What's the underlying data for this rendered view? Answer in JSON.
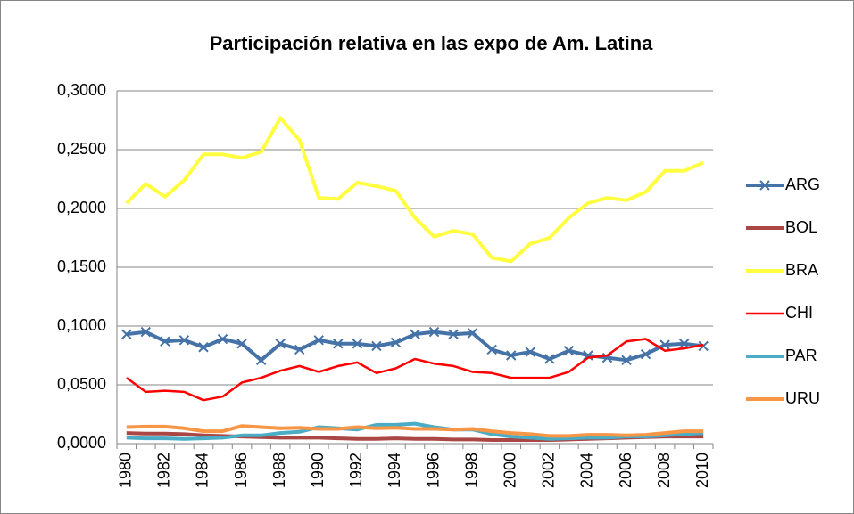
{
  "chart_data": {
    "type": "line",
    "title": "Participación relativa en las expo de Am. Latina",
    "categories": [
      "1980",
      null,
      "1982",
      null,
      "1984",
      null,
      "1986",
      null,
      "1988",
      null,
      "1990",
      null,
      "1992",
      null,
      "1994",
      null,
      "1996",
      null,
      "1998",
      null,
      "2000",
      null,
      "2002",
      null,
      "2004",
      null,
      "2006",
      null,
      "2008",
      null,
      "2010"
    ],
    "ylim": [
      0,
      0.3
    ],
    "yticks": [
      {
        "value": 0,
        "label": "0,0000"
      },
      {
        "value": 0.05,
        "label": "0,0500"
      },
      {
        "value": 0.1,
        "label": "0,1000"
      },
      {
        "value": 0.15,
        "label": "0,1500"
      },
      {
        "value": 0.2,
        "label": "0,2000"
      },
      {
        "value": 0.25,
        "label": "0,2500"
      },
      {
        "value": 0.3,
        "label": "0,3000"
      }
    ],
    "grid": true,
    "legend": "right",
    "series": [
      {
        "name": "ARG",
        "color": "#4572a7",
        "marker": "x",
        "values": [
          0.093,
          0.095,
          0.087,
          0.088,
          0.082,
          0.089,
          0.085,
          0.071,
          0.085,
          0.08,
          0.088,
          0.085,
          0.085,
          0.083,
          0.086,
          0.093,
          0.095,
          0.093,
          0.094,
          0.08,
          0.075,
          0.078,
          0.072,
          0.079,
          0.075,
          0.073,
          0.071,
          0.076,
          0.084,
          0.085,
          0.083
        ]
      },
      {
        "name": "BOL",
        "color": "#aa4643",
        "values": [
          0.009,
          0.0085,
          0.0085,
          0.008,
          0.007,
          0.0065,
          0.006,
          0.0055,
          0.005,
          0.005,
          0.005,
          0.0045,
          0.004,
          0.004,
          0.0045,
          0.004,
          0.004,
          0.0035,
          0.0035,
          0.003,
          0.003,
          0.003,
          0.003,
          0.0035,
          0.004,
          0.0045,
          0.005,
          0.0055,
          0.006,
          0.006,
          0.006
        ]
      },
      {
        "name": "BRA",
        "color": "#ffff40",
        "values": [
          0.2045,
          0.221,
          0.21,
          0.224,
          0.246,
          0.246,
          0.243,
          0.248,
          0.277,
          0.258,
          0.209,
          0.208,
          0.222,
          0.219,
          0.215,
          0.192,
          0.176,
          0.181,
          0.178,
          0.158,
          0.155,
          0.17,
          0.175,
          0.192,
          0.2045,
          0.209,
          0.207,
          0.214,
          0.232,
          0.232,
          0.239
        ]
      },
      {
        "name": "CHI",
        "color": "#ff0000",
        "values": [
          0.056,
          0.044,
          0.045,
          0.044,
          0.037,
          0.04,
          0.052,
          0.056,
          0.062,
          0.066,
          0.061,
          0.066,
          0.069,
          0.06,
          0.064,
          0.072,
          0.068,
          0.066,
          0.061,
          0.06,
          0.056,
          0.056,
          0.056,
          0.061,
          0.073,
          0.075,
          0.087,
          0.089,
          0.079,
          0.081,
          0.084
        ]
      },
      {
        "name": "PAR",
        "color": "#4bacc6",
        "values": [
          0.005,
          0.0045,
          0.0045,
          0.004,
          0.0045,
          0.005,
          0.007,
          0.007,
          0.009,
          0.01,
          0.014,
          0.013,
          0.012,
          0.016,
          0.016,
          0.017,
          0.014,
          0.012,
          0.012,
          0.008,
          0.006,
          0.005,
          0.004,
          0.0045,
          0.005,
          0.005,
          0.006,
          0.006,
          0.007,
          0.008,
          0.009
        ]
      },
      {
        "name": "URU",
        "color": "#f79646",
        "values": [
          0.014,
          0.0145,
          0.0145,
          0.013,
          0.0105,
          0.0105,
          0.015,
          0.014,
          0.013,
          0.0135,
          0.0125,
          0.0125,
          0.014,
          0.013,
          0.0135,
          0.0125,
          0.0125,
          0.012,
          0.0125,
          0.0105,
          0.009,
          0.008,
          0.0065,
          0.0065,
          0.0075,
          0.0075,
          0.007,
          0.0075,
          0.009,
          0.0105,
          0.0105
        ]
      }
    ]
  }
}
